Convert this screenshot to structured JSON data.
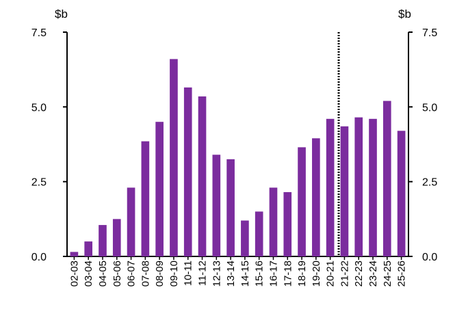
{
  "chart_data": {
    "type": "bar",
    "title": "",
    "xlabel": "",
    "ylabel": "",
    "y_unit_left": "$b",
    "y_unit_right": "$b",
    "ylim": [
      0,
      7.5
    ],
    "yticks": [
      "0.0",
      "2.5",
      "5.0",
      "7.5"
    ],
    "grid": false,
    "legend": "none",
    "bar_color": "#7b2c9e",
    "divider_after_category": "21-22",
    "categories": [
      "02-03",
      "03-04",
      "04-05",
      "05-06",
      "06-07",
      "07-08",
      "08-09",
      "09-10",
      "10-11",
      "11-12",
      "12-13",
      "13-14",
      "14-15",
      "15-16",
      "16-17",
      "17-18",
      "18-19",
      "19-20",
      "20-21",
      "21-22",
      "22-23",
      "23-24",
      "24-25",
      "25-26"
    ],
    "values": [
      0.15,
      0.5,
      1.05,
      1.25,
      2.3,
      3.85,
      4.5,
      6.6,
      5.65,
      5.35,
      3.4,
      3.25,
      1.2,
      1.5,
      2.3,
      2.15,
      3.65,
      3.95,
      4.6,
      4.35,
      4.65,
      4.6,
      5.2,
      4.2
    ]
  }
}
